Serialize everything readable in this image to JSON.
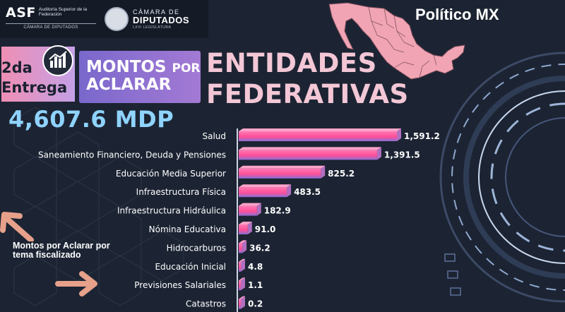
{
  "brand": "Político MX",
  "logos": {
    "asf_mark": "ASF",
    "asf_sub": "Auditoría Superior de la Federación",
    "asf_bottom": "CÁMARA DE DIPUTADOS",
    "camara_t1": "CÁMARA DE",
    "camara_t2": "DIPUTADOS",
    "camara_t3": "LXVI LEGISLATURA"
  },
  "entrega": "2da Entrega",
  "montos_line1_a": "MONTOS",
  "montos_line1_b": "POR",
  "montos_line2": "ACLARAR",
  "heading": "ENTIDADES FEDERATIVAS",
  "total": "4,607.6 MDP",
  "note": "Montos por Aclarar por tema fiscalizado",
  "icons": {
    "entrega": "bar-chart-icon",
    "map": "mexico-map-icon",
    "arrow_up": "arrow-up-left-icon",
    "arrow_right": "arrow-right-icon"
  },
  "colors": {
    "background": "#1c2433",
    "bar_top": "#ff5da2",
    "bar_bottom": "#8a6fd6",
    "total": "#8fd3ff",
    "heading": "#f3c7d6"
  },
  "chart_data": {
    "type": "bar",
    "orientation": "horizontal",
    "title": "",
    "xlabel": "",
    "ylabel": "",
    "categories": [
      "Salud",
      "Saneamiento Financiero, Deuda y Pensiones",
      "Educación Media Superior",
      "Infraestructura Física",
      "Infraestructura Hidráulica",
      "Nómina Educativa",
      "Hidrocarburos",
      "Educación Inicial",
      "Previsiones Salariales",
      "Catastros"
    ],
    "values": [
      1591.2,
      1391.5,
      825.2,
      483.5,
      182.9,
      91.0,
      36.2,
      4.8,
      1.1,
      0.2
    ],
    "value_labels": [
      "1,591.2",
      "1,391.5",
      "825.2",
      "483.5",
      "182.9",
      "91.0",
      "36.2",
      "4.8",
      "1.1",
      "0.2"
    ],
    "xlim": [
      0,
      1591.2
    ],
    "grid": false,
    "legend": "none"
  }
}
